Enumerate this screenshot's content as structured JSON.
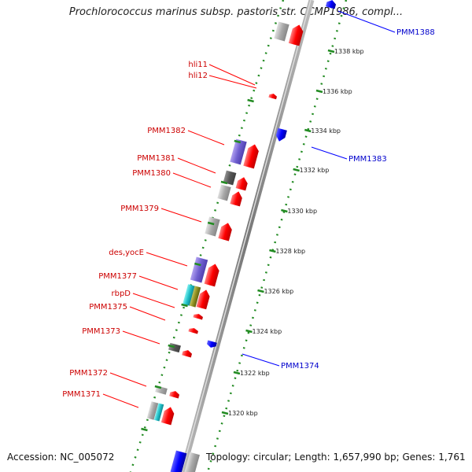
{
  "title": "Prochlorococcus marinus subsp. pastoris str. CCMP1986, compl...",
  "footer": {
    "accession": "Accession: NC_005072",
    "topology": "Topology: circular; Length: 1,657,990 bp; Genes: 1,761"
  },
  "ticks": [
    "1338 kbp",
    "1336 kbp",
    "1334 kbp",
    "1332 kbp",
    "1330 kbp",
    "1328 kbp",
    "1326 kbp",
    "1324 kbp",
    "1322 kbp",
    "1320 kbp"
  ],
  "left_labels": [
    "hli11",
    "hli12",
    "PMM1382",
    "PMM1381",
    "PMM1380",
    "PMM1379",
    "des,yocE",
    "PMM1377",
    "rbpD",
    "PMM1375",
    "PMM1373",
    "PMM1372",
    "PMM1371"
  ],
  "right_labels": [
    "PMM1388",
    "PMM1383",
    "PMM1374"
  ],
  "colors": {
    "forward": "#ff0000",
    "reverse": "#0000ff",
    "backbone": "#888888",
    "tickline": "#228b22"
  }
}
